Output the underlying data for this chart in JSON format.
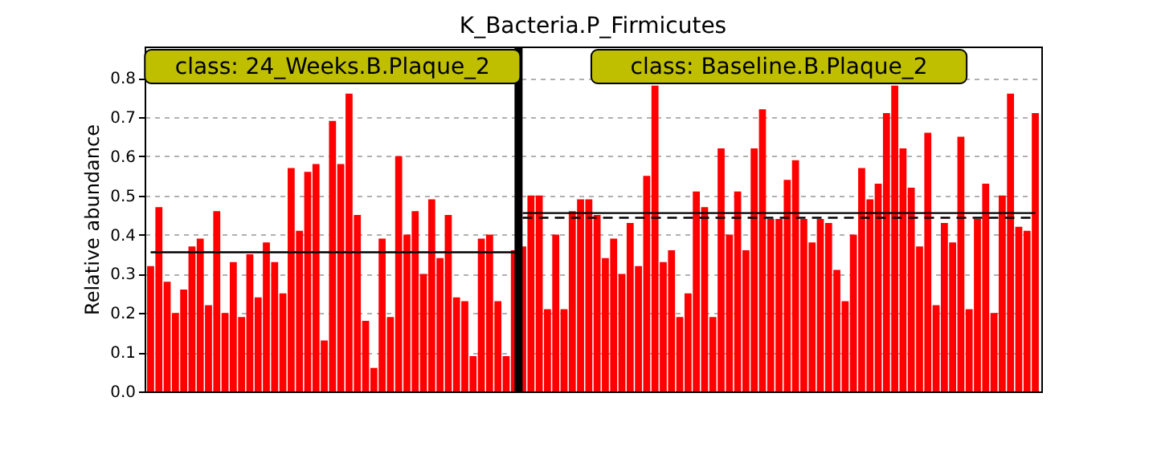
{
  "chart_data": {
    "type": "bar",
    "title": "K_Bacteria.P_Firmicutes",
    "ylabel": "Relative abundance",
    "categories": [
      null,
      null,
      null,
      null,
      null,
      null,
      null,
      null,
      null,
      null,
      null,
      null,
      null,
      null,
      null,
      null,
      null,
      null,
      null,
      null,
      null,
      null,
      null,
      null,
      null,
      null,
      null,
      null,
      null,
      null,
      null,
      null,
      null,
      null,
      null,
      null,
      null,
      null,
      null,
      null,
      null,
      null,
      null,
      null,
      null,
      null,
      null,
      null,
      null,
      null,
      null,
      null,
      null,
      null,
      null,
      null,
      null,
      null,
      null,
      null,
      null,
      null,
      null,
      null,
      null,
      null,
      null,
      null,
      null,
      null,
      null,
      null,
      null,
      null,
      null,
      null,
      null,
      null,
      null,
      null,
      null,
      null,
      null,
      null,
      null,
      null,
      null,
      null,
      null,
      null,
      null,
      null,
      null,
      null,
      null,
      null,
      null,
      null,
      null,
      null,
      null,
      null,
      null,
      null,
      null,
      null,
      null,
      null
    ],
    "series": [
      {
        "color": "#ff0000",
        "values": [
          0.32,
          0.47,
          0.28,
          0.2,
          0.26,
          0.37,
          0.39,
          0.22,
          0.46,
          0.2,
          0.33,
          0.19,
          0.35,
          0.24,
          0.38,
          0.33,
          0.25,
          0.57,
          0.41,
          0.56,
          0.58,
          0.13,
          0.69,
          0.58,
          0.76,
          0.45,
          0.18,
          0.06,
          0.39,
          0.19,
          0.6,
          0.4,
          0.46,
          0.3,
          0.49,
          0.34,
          0.45,
          0.24,
          0.23,
          0.09,
          0.39,
          0.4,
          0.23,
          0.09,
          0.36,
          0.37,
          0.5,
          0.5,
          0.21,
          0.4,
          0.21,
          0.46,
          0.49,
          0.49,
          0.45,
          0.34,
          0.39,
          0.3,
          0.43,
          0.32,
          0.55,
          0.78,
          0.33,
          0.36,
          0.19,
          0.25,
          0.51,
          0.47,
          0.19,
          0.62,
          0.4,
          0.51,
          0.36,
          0.62,
          0.72,
          0.44,
          0.44,
          0.54,
          0.59,
          0.44,
          0.38,
          0.44,
          0.43,
          0.31,
          0.23,
          0.4,
          0.57,
          0.49,
          0.53,
          0.71,
          0.78,
          0.62,
          0.52,
          0.37,
          0.66,
          0.22,
          0.43,
          0.38,
          0.65,
          0.21,
          0.44,
          0.53,
          0.2,
          0.5,
          0.76,
          0.42,
          0.41,
          0.71
        ]
      },
      {
        "type": "line",
        "color": "#000000",
        "line_style": "solid",
        "values": [
          0.355,
          0.355,
          0.355,
          0.355,
          0.355,
          0.355,
          0.355,
          0.355,
          0.355,
          0.355,
          0.355,
          0.355,
          0.355,
          0.355,
          0.355,
          0.355,
          0.355,
          0.355,
          0.355,
          0.355,
          0.355,
          0.355,
          0.355,
          0.355,
          0.355,
          0.355,
          0.355,
          0.355,
          0.355,
          0.355,
          0.355,
          0.355,
          0.355,
          0.355,
          0.355,
          0.355,
          0.355,
          0.355,
          0.355,
          0.355,
          0.355,
          0.355,
          0.355,
          0.355,
          0.355,
          null,
          null,
          null,
          null,
          null,
          null,
          null,
          null,
          null,
          null,
          null,
          null,
          null,
          null,
          null,
          null,
          null,
          null,
          null,
          null,
          null,
          null,
          null,
          null,
          null,
          null,
          null,
          null,
          null,
          null,
          null,
          null,
          null,
          null,
          null,
          null,
          null,
          null,
          null,
          null,
          null,
          null,
          null,
          null,
          null,
          null,
          null,
          null,
          null,
          null,
          null,
          null,
          null,
          null,
          null,
          null,
          null,
          null,
          null,
          null,
          null,
          null,
          null
        ]
      },
      {
        "type": "line",
        "color": "#000000",
        "line_style": "solid",
        "values": [
          null,
          null,
          null,
          null,
          null,
          null,
          null,
          null,
          null,
          null,
          null,
          null,
          null,
          null,
          null,
          null,
          null,
          null,
          null,
          null,
          null,
          null,
          null,
          null,
          null,
          null,
          null,
          null,
          null,
          null,
          null,
          null,
          null,
          null,
          null,
          null,
          null,
          null,
          null,
          null,
          null,
          null,
          null,
          null,
          null,
          0.455,
          0.455,
          0.455,
          0.455,
          0.455,
          0.455,
          0.455,
          0.455,
          0.455,
          0.455,
          0.455,
          0.455,
          0.455,
          0.455,
          0.455,
          0.455,
          0.455,
          0.455,
          0.455,
          0.455,
          0.455,
          0.455,
          0.455,
          0.455,
          0.455,
          0.455,
          0.455,
          0.455,
          0.455,
          0.455,
          0.455,
          0.455,
          0.455,
          0.455,
          0.455,
          0.455,
          0.455,
          0.455,
          0.455,
          0.455,
          0.455,
          0.455,
          0.455,
          0.455,
          0.455,
          0.455,
          0.455,
          0.455,
          0.455,
          0.455,
          0.455,
          0.455,
          0.455,
          0.455,
          0.455,
          0.455,
          0.455,
          0.455,
          0.455,
          0.455,
          0.455,
          0.455,
          0.455
        ]
      },
      {
        "type": "line",
        "color": "#000000",
        "line_style": "dashed",
        "values": [
          null,
          null,
          null,
          null,
          null,
          null,
          null,
          null,
          null,
          null,
          null,
          null,
          null,
          null,
          null,
          null,
          null,
          null,
          null,
          null,
          null,
          null,
          null,
          null,
          null,
          null,
          null,
          null,
          null,
          null,
          null,
          null,
          null,
          null,
          null,
          null,
          null,
          null,
          null,
          null,
          null,
          null,
          null,
          null,
          null,
          0.443,
          0.443,
          0.443,
          0.443,
          0.443,
          0.443,
          0.443,
          0.443,
          0.443,
          0.443,
          0.443,
          0.443,
          0.443,
          0.443,
          0.443,
          0.443,
          0.443,
          0.443,
          0.443,
          0.443,
          0.443,
          0.443,
          0.443,
          0.443,
          0.443,
          0.443,
          0.443,
          0.443,
          0.443,
          0.443,
          0.443,
          0.443,
          0.443,
          0.443,
          0.443,
          0.443,
          0.443,
          0.443,
          0.443,
          0.443,
          0.443,
          0.443,
          0.443,
          0.443,
          0.443,
          0.443,
          0.443,
          0.443,
          0.443,
          0.443,
          0.443,
          0.443,
          0.443,
          0.443,
          0.443,
          0.443,
          0.443,
          0.443,
          0.443,
          0.443,
          0.443,
          0.443,
          0.443
        ]
      }
    ],
    "ylim": [
      0,
      0.88
    ],
    "yticks": [
      {
        "value": 0,
        "label": "0.0"
      },
      0.1,
      0.2,
      0.3,
      0.4,
      0.5,
      0.6,
      0.7,
      0.8
    ],
    "annotations": [
      "class: 24_Weeks.B.Plaque_2",
      "class: Baseline.B.Plaque_2"
    ],
    "grid": "y",
    "tick_labels": "y"
  }
}
